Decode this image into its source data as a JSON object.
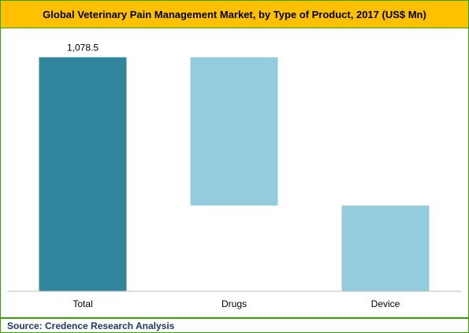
{
  "chart_data": {
    "type": "bar",
    "subtype": "waterfall",
    "title": "Global Veterinary Pain Management Market, by Type of Product, 2017 (US$ Mn)",
    "categories": [
      "Total",
      "Drugs",
      "Device"
    ],
    "bars": [
      {
        "category": "Total",
        "start": 0,
        "end": 1078.5,
        "label": "1,078.5",
        "color": "#31859c"
      },
      {
        "category": "Drugs",
        "start": 395,
        "end": 1078.5,
        "label": "",
        "color": "#93cddd"
      },
      {
        "category": "Device",
        "start": 0,
        "end": 395,
        "label": "",
        "color": "#93cddd"
      }
    ],
    "xlabel": "",
    "ylabel": "",
    "ylim": [
      0,
      1150
    ],
    "grid": false,
    "legend": "none"
  },
  "footer": {
    "source": "Source: Credence Research Analysis"
  }
}
